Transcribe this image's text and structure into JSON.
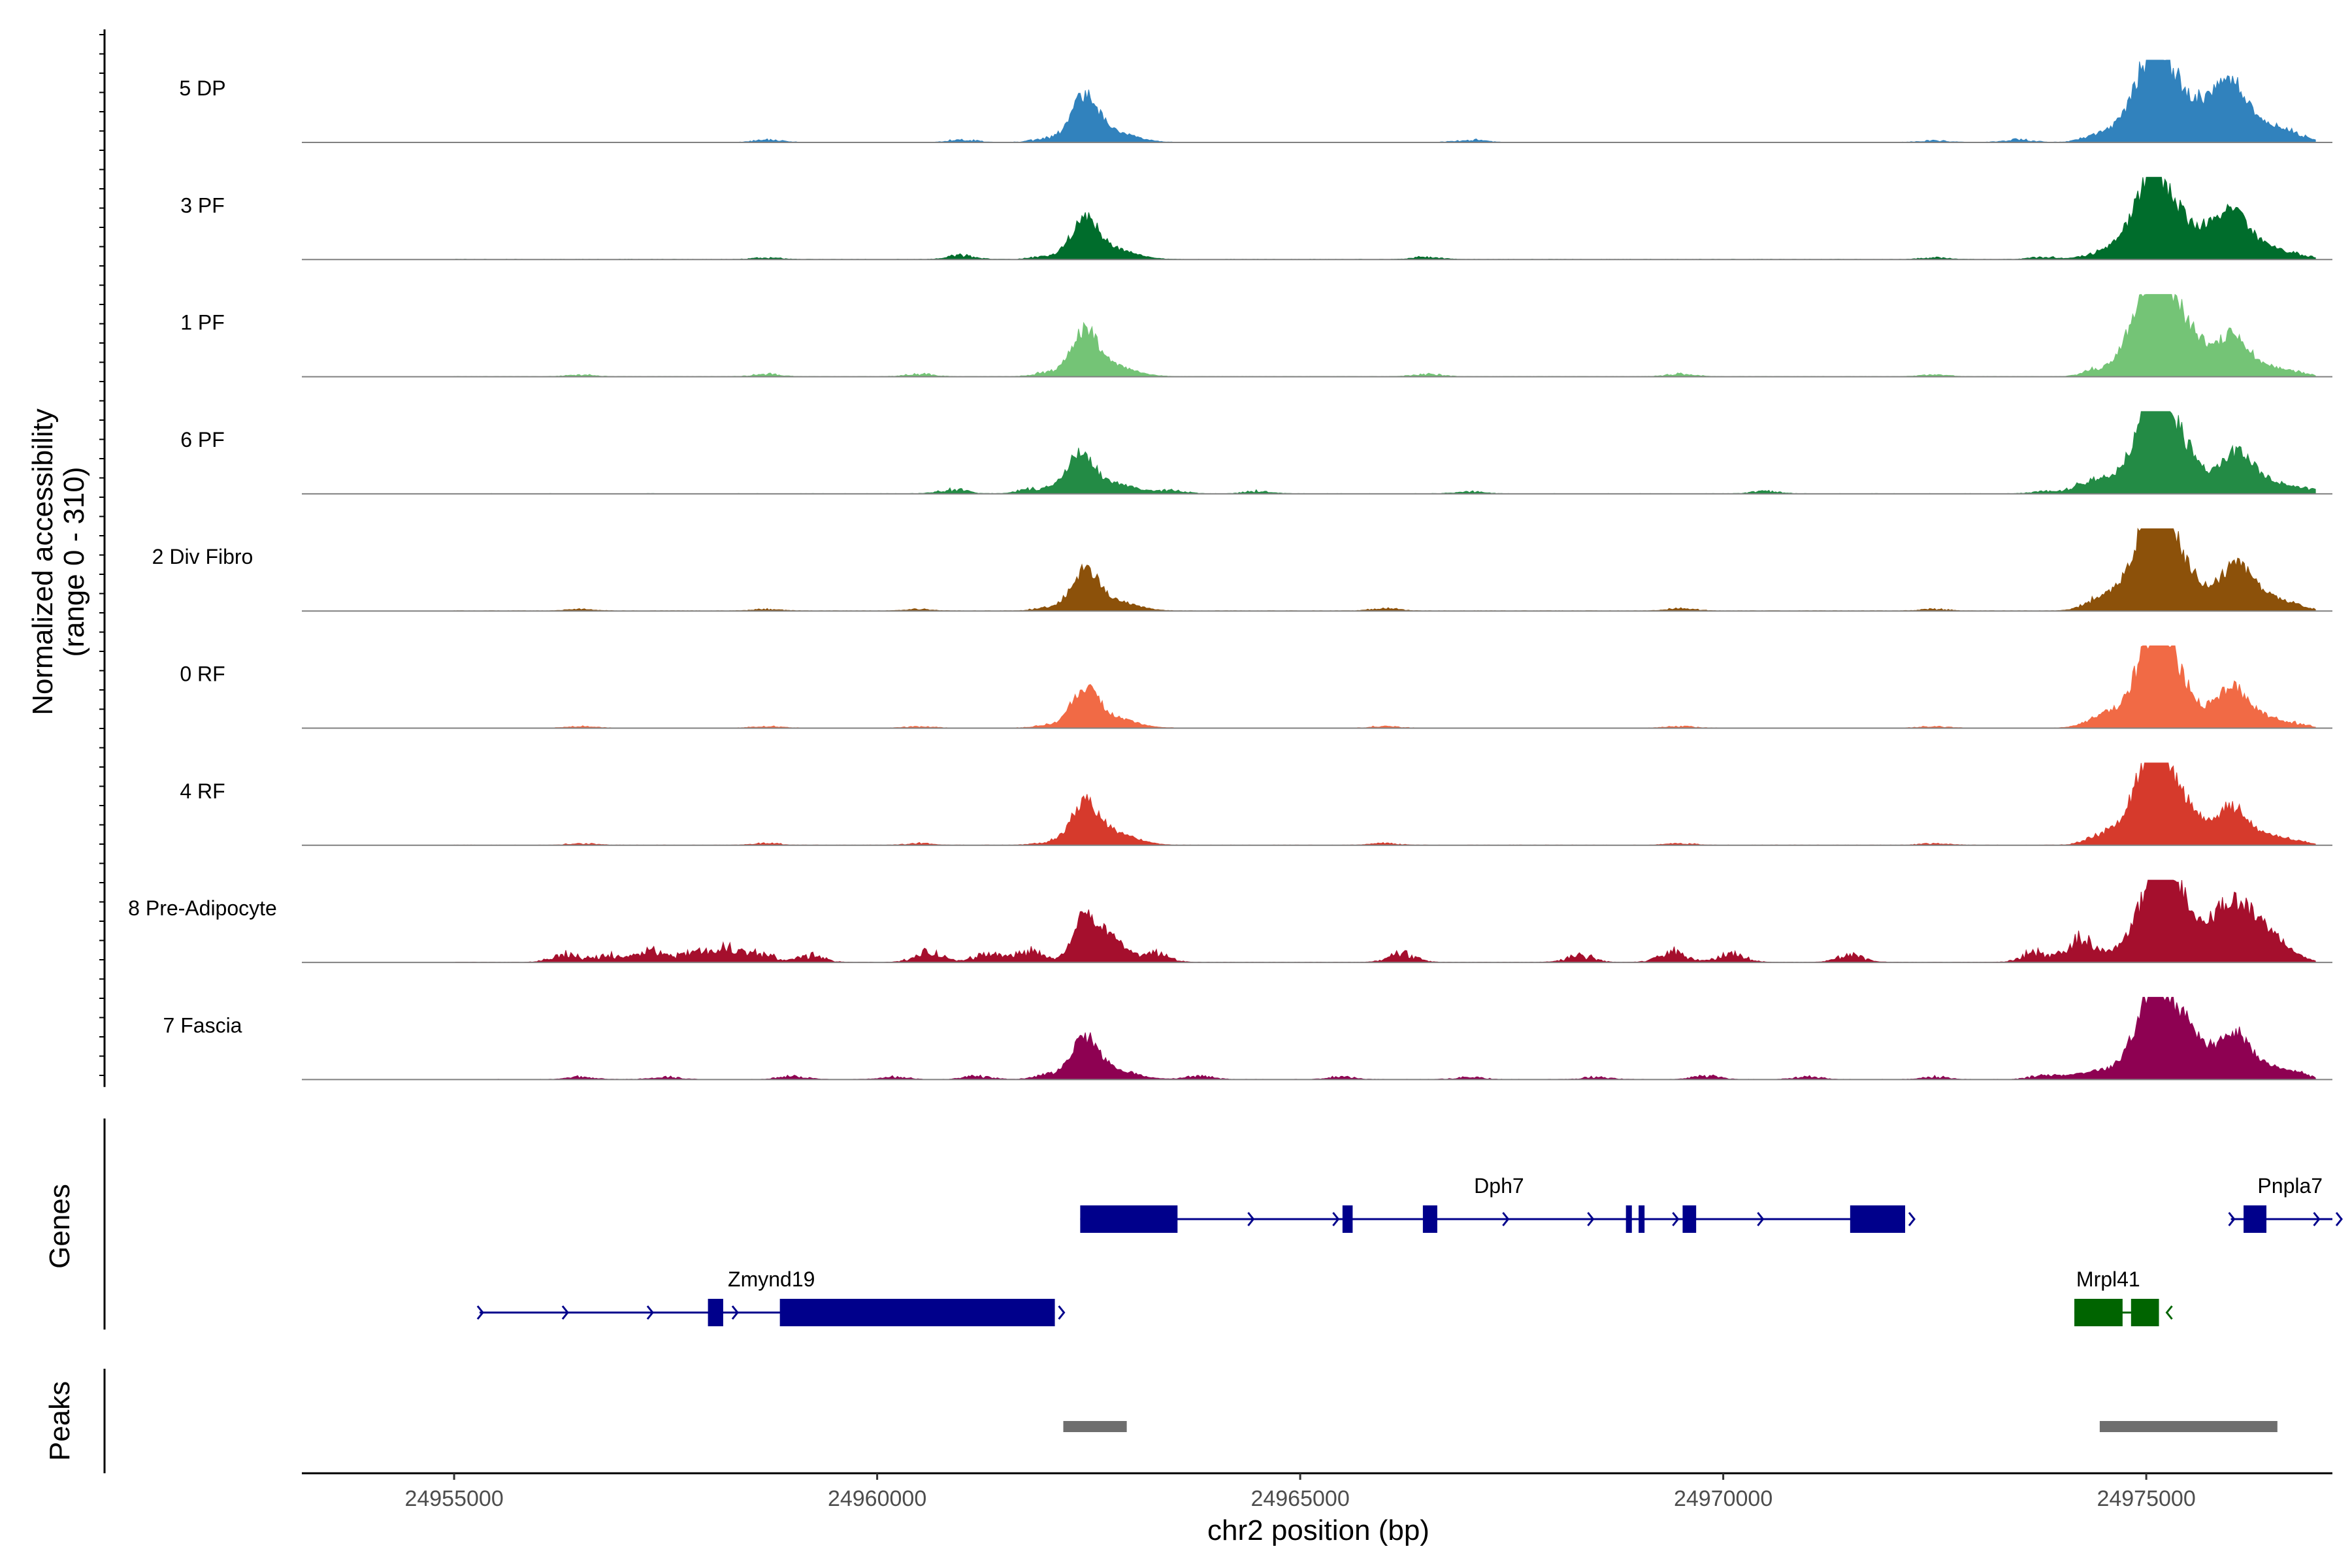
{
  "chart_data": {
    "type": "area",
    "title": "",
    "ylabel_line1": "Normalized accessibility",
    "ylabel_line2": "(range 0 - 310)",
    "ylim": [
      0,
      310
    ],
    "xlabel": "chr2 position (bp)",
    "xlim": [
      24953200,
      24977200
    ],
    "x_ticks": [
      24955000,
      24960000,
      24965000,
      24970000,
      24975000
    ],
    "x_tick_labels": [
      "24955000",
      "24960000",
      "24965000",
      "24970000",
      "24975000"
    ],
    "data_extent": [
      24955000,
      24978000
    ],
    "tracks": [
      {
        "name": "5 DP",
        "color": "#3182BD",
        "peaks": [
          [
            24962450,
            0.55,
            160
          ],
          [
            24962800,
            0.12,
            250
          ],
          [
            24974650,
            0.1,
            220
          ],
          [
            24974950,
            0.3,
            200
          ],
          [
            24975150,
            0.98,
            210
          ],
          [
            24975600,
            0.4,
            220
          ],
          [
            24976000,
            0.68,
            190
          ],
          [
            24976450,
            0.2,
            230
          ]
        ],
        "noise": [
          [
            24958700,
            0.03
          ],
          [
            24961000,
            0.03
          ],
          [
            24962000,
            0.04
          ],
          [
            24967000,
            0.03
          ],
          [
            24972500,
            0.02
          ],
          [
            24973500,
            0.03
          ],
          [
            24974400,
            0.05
          ],
          [
            24976800,
            0.04
          ]
        ]
      },
      {
        "name": "3 PF",
        "color": "#006D2C",
        "peaks": [
          [
            24962450,
            0.48,
            160
          ],
          [
            24962800,
            0.12,
            250
          ],
          [
            24974700,
            0.1,
            220
          ],
          [
            24974950,
            0.3,
            200
          ],
          [
            24975150,
            0.88,
            210
          ],
          [
            24975600,
            0.3,
            220
          ],
          [
            24976000,
            0.55,
            190
          ],
          [
            24976400,
            0.15,
            230
          ]
        ],
        "noise": [
          [
            24958700,
            0.02
          ],
          [
            24961000,
            0.05
          ],
          [
            24962000,
            0.04
          ],
          [
            24966500,
            0.03
          ],
          [
            24972500,
            0.02
          ],
          [
            24973800,
            0.03
          ],
          [
            24974400,
            0.05
          ],
          [
            24976800,
            0.04
          ]
        ]
      },
      {
        "name": "1 PF",
        "color": "#74C476",
        "peaks": [
          [
            24962450,
            0.55,
            160
          ],
          [
            24962800,
            0.12,
            250
          ],
          [
            24974700,
            0.1,
            220
          ],
          [
            24974950,
            0.35,
            180
          ],
          [
            24975100,
            0.98,
            200
          ],
          [
            24975400,
            0.45,
            180
          ],
          [
            24975600,
            0.2,
            200
          ],
          [
            24976000,
            0.48,
            190
          ],
          [
            24976400,
            0.12,
            230
          ]
        ],
        "noise": [
          [
            24956500,
            0.02
          ],
          [
            24958700,
            0.03
          ],
          [
            24960500,
            0.03
          ],
          [
            24962000,
            0.04
          ],
          [
            24966500,
            0.03
          ],
          [
            24969500,
            0.03
          ],
          [
            24972500,
            0.02
          ],
          [
            24974400,
            0.05
          ],
          [
            24976800,
            0.03
          ]
        ]
      },
      {
        "name": "6 PF",
        "color": "#238B45",
        "peaks": [
          [
            24962400,
            0.48,
            160
          ],
          [
            24962800,
            0.12,
            250
          ],
          [
            24974600,
            0.15,
            250
          ],
          [
            24975000,
            0.45,
            200
          ],
          [
            24975150,
            0.9,
            200
          ],
          [
            24975500,
            0.4,
            180
          ],
          [
            24976050,
            0.5,
            190
          ],
          [
            24976450,
            0.15,
            230
          ]
        ],
        "noise": [
          [
            24960900,
            0.05
          ],
          [
            24961800,
            0.04
          ],
          [
            24962000,
            0.04
          ],
          [
            24963500,
            0.04
          ],
          [
            24964500,
            0.03
          ],
          [
            24967000,
            0.03
          ],
          [
            24970500,
            0.03
          ],
          [
            24973800,
            0.03
          ],
          [
            24974300,
            0.08
          ],
          [
            24976900,
            0.05
          ]
        ]
      },
      {
        "name": "2 Div Fibro",
        "color": "#8C510A",
        "peaks": [
          [
            24962450,
            0.48,
            160
          ],
          [
            24962800,
            0.12,
            250
          ],
          [
            24974600,
            0.15,
            220
          ],
          [
            24975000,
            0.5,
            200
          ],
          [
            24975150,
            1.0,
            200
          ],
          [
            24975500,
            0.35,
            200
          ],
          [
            24976050,
            0.55,
            190
          ],
          [
            24976450,
            0.15,
            230
          ]
        ],
        "noise": [
          [
            24956500,
            0.02
          ],
          [
            24958700,
            0.02
          ],
          [
            24960500,
            0.02
          ],
          [
            24962000,
            0.03
          ],
          [
            24966000,
            0.03
          ],
          [
            24969500,
            0.03
          ],
          [
            24972500,
            0.02
          ],
          [
            24974400,
            0.05
          ],
          [
            24976800,
            0.03
          ]
        ]
      },
      {
        "name": "0 RF",
        "color": "#F16A45",
        "peaks": [
          [
            24962450,
            0.48,
            160
          ],
          [
            24962800,
            0.12,
            250
          ],
          [
            24974600,
            0.15,
            220
          ],
          [
            24975000,
            0.4,
            200
          ],
          [
            24975150,
            0.92,
            190
          ],
          [
            24975450,
            0.35,
            180
          ],
          [
            24976000,
            0.5,
            190
          ],
          [
            24976400,
            0.12,
            230
          ]
        ],
        "noise": [
          [
            24956500,
            0.02
          ],
          [
            24958700,
            0.02
          ],
          [
            24960500,
            0.02
          ],
          [
            24962000,
            0.03
          ],
          [
            24966000,
            0.02
          ],
          [
            24969500,
            0.02
          ],
          [
            24972500,
            0.02
          ],
          [
            24974400,
            0.04
          ],
          [
            24976800,
            0.03
          ]
        ]
      },
      {
        "name": "4 RF",
        "color": "#D63A2C",
        "peaks": [
          [
            24962450,
            0.5,
            160
          ],
          [
            24962800,
            0.15,
            250
          ],
          [
            24974700,
            0.15,
            220
          ],
          [
            24975000,
            0.4,
            200
          ],
          [
            24975150,
            0.84,
            200
          ],
          [
            24975500,
            0.35,
            180
          ],
          [
            24976000,
            0.46,
            180
          ],
          [
            24976400,
            0.12,
            230
          ]
        ],
        "noise": [
          [
            24956500,
            0.02
          ],
          [
            24958700,
            0.02
          ],
          [
            24960500,
            0.02
          ],
          [
            24962000,
            0.03
          ],
          [
            24966000,
            0.02
          ],
          [
            24969500,
            0.02
          ],
          [
            24972500,
            0.02
          ],
          [
            24974400,
            0.05
          ],
          [
            24976800,
            0.03
          ]
        ]
      },
      {
        "name": "8 Pre-Adipocyte",
        "color": "#A50F2D",
        "peaks": [
          [
            24962450,
            0.55,
            140
          ],
          [
            24962750,
            0.3,
            180
          ],
          [
            24974400,
            0.1,
            220
          ],
          [
            24974900,
            0.35,
            180
          ],
          [
            24975150,
            1.0,
            160
          ],
          [
            24975350,
            0.7,
            160
          ],
          [
            24975750,
            0.4,
            180
          ],
          [
            24976050,
            0.6,
            170
          ],
          [
            24976350,
            0.35,
            180
          ],
          [
            24976600,
            0.15,
            200
          ]
        ],
        "noise": [
          [
            24956300,
            0.1
          ],
          [
            24956800,
            0.08
          ],
          [
            24957300,
            0.14
          ],
          [
            24957800,
            0.12
          ],
          [
            24958200,
            0.16
          ],
          [
            24958600,
            0.12
          ],
          [
            24959200,
            0.08
          ],
          [
            24960600,
            0.12
          ],
          [
            24961300,
            0.1
          ],
          [
            24961800,
            0.14
          ],
          [
            24963300,
            0.1
          ],
          [
            24966200,
            0.1
          ],
          [
            24968300,
            0.08
          ],
          [
            24969400,
            0.12
          ],
          [
            24970100,
            0.1
          ],
          [
            24971500,
            0.08
          ],
          [
            24973700,
            0.12
          ],
          [
            24974200,
            0.2
          ]
        ]
      },
      {
        "name": "7 Fascia",
        "color": "#8E0152",
        "peaks": [
          [
            24962450,
            0.5,
            160
          ],
          [
            24962800,
            0.12,
            250
          ],
          [
            24974400,
            0.1,
            250
          ],
          [
            24974950,
            0.4,
            200
          ],
          [
            24975150,
            0.85,
            190
          ],
          [
            24975450,
            0.5,
            180
          ],
          [
            24975700,
            0.2,
            180
          ],
          [
            24976050,
            0.55,
            170
          ],
          [
            24976450,
            0.15,
            230
          ]
        ],
        "noise": [
          [
            24956500,
            0.03
          ],
          [
            24957500,
            0.03
          ],
          [
            24959000,
            0.04
          ],
          [
            24960200,
            0.03
          ],
          [
            24961200,
            0.04
          ],
          [
            24962000,
            0.05
          ],
          [
            24963800,
            0.04
          ],
          [
            24965500,
            0.03
          ],
          [
            24967000,
            0.03
          ],
          [
            24968500,
            0.03
          ],
          [
            24969800,
            0.04
          ],
          [
            24971000,
            0.03
          ],
          [
            24972500,
            0.03
          ],
          [
            24973800,
            0.05
          ],
          [
            24976800,
            0.04
          ]
        ]
      }
    ],
    "genes_panel_title": "Genes",
    "genes": [
      {
        "name": "Dph7",
        "color": "#00008B",
        "row": 0,
        "strand": "+",
        "start": 24962400,
        "end": 24972150,
        "label_pos": 24967350,
        "exons": [
          [
            24962400,
            24963550
          ],
          [
            24965500,
            24965620
          ],
          [
            24966450,
            24966620
          ],
          [
            24968850,
            24968920
          ],
          [
            24969000,
            24969070
          ],
          [
            24969520,
            24969680
          ],
          [
            24971500,
            24972150
          ]
        ]
      },
      {
        "name": "Pnpla7",
        "color": "#00008B",
        "row": 0,
        "strand": "+",
        "start": 24976000,
        "end": 24977200,
        "label_pos": 24976700,
        "exons": [
          [
            24976150,
            24976420
          ]
        ]
      },
      {
        "name": "Zmynd19",
        "color": "#00008B",
        "row": 1,
        "strand": "+",
        "start": 24955300,
        "end": 24962100,
        "label_pos": 24958750,
        "exons": [
          [
            24958000,
            24958180
          ],
          [
            24958850,
            24962100
          ]
        ]
      },
      {
        "name": "Mrpl41",
        "color": "#006400",
        "row": 1,
        "strand": "-",
        "start": 24974150,
        "end": 24975100,
        "label_pos": 24974550,
        "exons": [
          [
            24974150,
            24974720
          ],
          [
            24974820,
            24975150
          ]
        ]
      }
    ],
    "peaks_panel_title": "Peaks",
    "peak_regions": [
      [
        24962200,
        24962950
      ],
      [
        24974450,
        24976550
      ]
    ]
  }
}
